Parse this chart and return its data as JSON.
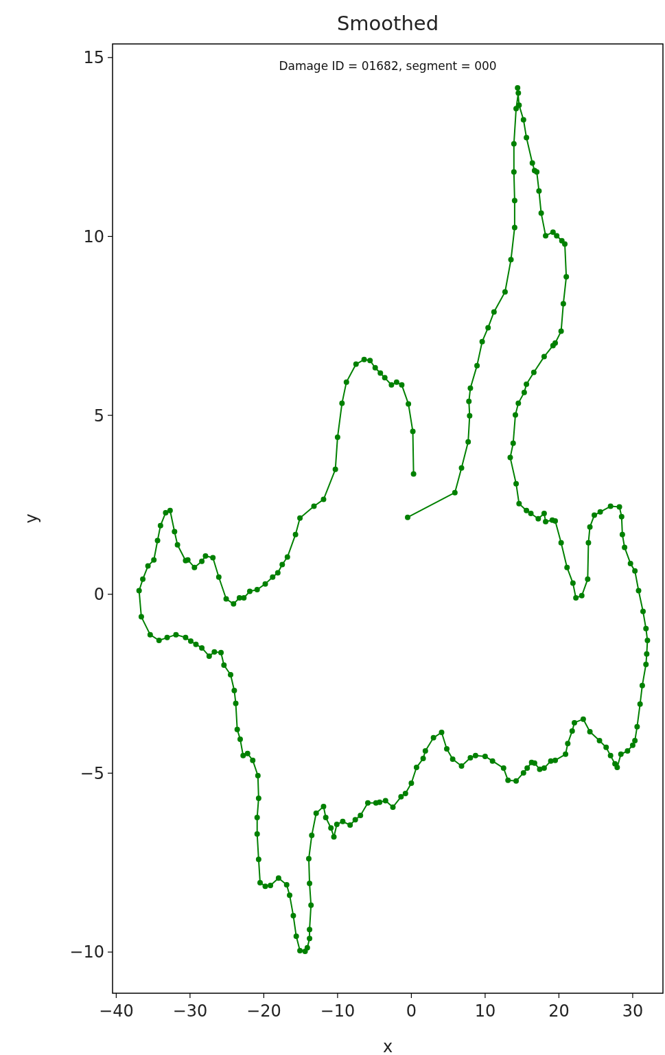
{
  "chart_data": {
    "type": "line",
    "title": "Smoothed",
    "xlabel": "x",
    "ylabel": "y",
    "annotations": [
      "Damage ID = 01682, segment = 000"
    ],
    "marker": "circle",
    "line_style": "solid",
    "grid": false,
    "xlim": [
      -40.5,
      34.1
    ],
    "ylim": [
      -11.15,
      15.38
    ],
    "xticks": [
      {
        "value": -40,
        "label": "−40"
      },
      {
        "value": -30,
        "label": "−30"
      },
      {
        "value": -20,
        "label": "−20"
      },
      {
        "value": -10,
        "label": "−10"
      },
      0,
      10,
      20,
      30
    ],
    "yticks": [
      {
        "value": -10,
        "label": "−10"
      },
      {
        "value": -5,
        "label": "−5"
      },
      0,
      5,
      10,
      15
    ],
    "series": [
      {
        "color": "#008000",
        "x": [
          0.3,
          0.2,
          -0.4,
          -1.3,
          -2.0,
          -2.7,
          -3.6,
          -4.2,
          -4.9,
          -5.6,
          -6.4,
          -7.5,
          -8.8,
          -9.4,
          -10.0,
          -10.3,
          -11.9,
          -13.2,
          -15.1,
          -15.7,
          -16.8,
          -17.5,
          -18.1,
          -18.8,
          -19.8,
          -20.9,
          -21.9,
          -22.7,
          -23.3,
          -24.1,
          -25.1,
          -26.1,
          -26.9,
          -27.9,
          -28.4,
          -29.4,
          -30.3,
          -30.6,
          -31.7,
          -32.1,
          -32.7,
          -33.3,
          -34.0,
          -34.4,
          -34.9,
          -35.7,
          -36.4,
          -36.9,
          -36.6,
          -35.4,
          -34.2,
          -33.1,
          -31.9,
          -30.6,
          -29.9,
          -29.2,
          -28.4,
          -27.4,
          -26.7,
          -25.8,
          -25.4,
          -24.5,
          -24.0,
          -23.8,
          -23.6,
          -23.2,
          -22.8,
          -22.2,
          -21.5,
          -20.8,
          -20.7,
          -20.9,
          -20.9,
          -20.7,
          -20.5,
          -19.8,
          -19.1,
          -18.0,
          -16.9,
          -16.5,
          -16.0,
          -15.6,
          -15.1,
          -14.4,
          -14.1,
          -13.8,
          -13.8,
          -13.6,
          -13.8,
          -13.9,
          -13.5,
          -12.9,
          -11.9,
          -11.6,
          -10.9,
          -10.5,
          -10.1,
          -9.3,
          -8.3,
          -7.6,
          -6.9,
          -5.9,
          -4.8,
          -4.3,
          -3.5,
          -2.5,
          -1.4,
          -0.8,
          0.0,
          0.7,
          1.6,
          1.9,
          3.0,
          4.1,
          4.8,
          5.6,
          6.8,
          8.0,
          8.7,
          10.0,
          11.0,
          12.5,
          13.1,
          14.2,
          15.2,
          15.7,
          16.3,
          16.7,
          17.4,
          18.0,
          18.9,
          19.5,
          20.9,
          21.2,
          21.8,
          22.1,
          23.3,
          24.2,
          25.5,
          26.4,
          27.0,
          27.6,
          27.9,
          28.4,
          29.3,
          30.0,
          30.3,
          30.6,
          31.0,
          31.3,
          31.8,
          31.9,
          32.0,
          31.8,
          31.4,
          30.8,
          30.3,
          29.7,
          28.9,
          28.6,
          28.5,
          28.2,
          27.0,
          25.6,
          24.8,
          24.2,
          24.0,
          23.9,
          23.1,
          22.3,
          21.9,
          21.1,
          20.3,
          19.5,
          19.1,
          18.2,
          18.0,
          17.2,
          16.2,
          15.6,
          14.6,
          14.2,
          13.4,
          13.8,
          14.1,
          14.5,
          15.3,
          15.6,
          16.6,
          18.0,
          19.2,
          19.5,
          20.3,
          20.6,
          21.0,
          20.8,
          20.4,
          19.7,
          19.2,
          18.2,
          17.6,
          17.3,
          17.0,
          16.7,
          16.4,
          15.6,
          15.2,
          14.6,
          14.4,
          14.5,
          14.2,
          13.9,
          13.9,
          14.0,
          14.0,
          13.5,
          12.7,
          11.2,
          10.4,
          9.6,
          8.9,
          8.0,
          7.8,
          7.9,
          7.7,
          6.8,
          5.9,
          -0.5
        ],
        "values": [
          3.36,
          4.55,
          5.32,
          5.85,
          5.93,
          5.85,
          6.05,
          6.18,
          6.33,
          6.53,
          6.56,
          6.43,
          5.93,
          5.34,
          4.39,
          3.49,
          2.65,
          2.46,
          2.13,
          1.67,
          1.04,
          0.83,
          0.6,
          0.48,
          0.29,
          0.13,
          0.08,
          -0.1,
          -0.1,
          -0.27,
          -0.13,
          0.48,
          1.02,
          1.07,
          0.92,
          0.75,
          0.96,
          0.94,
          1.38,
          1.75,
          2.34,
          2.28,
          1.92,
          1.5,
          0.96,
          0.79,
          0.42,
          0.1,
          -0.63,
          -1.13,
          -1.29,
          -1.21,
          -1.13,
          -1.21,
          -1.31,
          -1.4,
          -1.5,
          -1.73,
          -1.61,
          -1.63,
          -1.98,
          -2.25,
          -2.69,
          -3.05,
          -3.78,
          -4.05,
          -4.51,
          -4.45,
          -4.64,
          -5.07,
          -5.7,
          -6.24,
          -6.7,
          -7.41,
          -8.06,
          -8.16,
          -8.14,
          -7.93,
          -8.12,
          -8.41,
          -8.98,
          -9.56,
          -9.96,
          -9.98,
          -9.88,
          -9.62,
          -9.37,
          -8.69,
          -8.08,
          -7.39,
          -6.74,
          -6.12,
          -5.93,
          -6.24,
          -6.53,
          -6.78,
          -6.43,
          -6.35,
          -6.45,
          -6.3,
          -6.18,
          -5.83,
          -5.83,
          -5.81,
          -5.77,
          -5.95,
          -5.66,
          -5.57,
          -5.28,
          -4.84,
          -4.59,
          -4.38,
          -4.01,
          -3.86,
          -4.32,
          -4.61,
          -4.8,
          -4.57,
          -4.51,
          -4.53,
          -4.66,
          -4.86,
          -5.2,
          -5.22,
          -4.99,
          -4.86,
          -4.7,
          -4.72,
          -4.89,
          -4.86,
          -4.66,
          -4.64,
          -4.47,
          -4.17,
          -3.82,
          -3.59,
          -3.49,
          -3.84,
          -4.09,
          -4.28,
          -4.51,
          -4.74,
          -4.84,
          -4.47,
          -4.38,
          -4.22,
          -4.09,
          -3.7,
          -3.07,
          -2.55,
          -1.96,
          -1.67,
          -1.29,
          -0.96,
          -0.48,
          0.1,
          0.65,
          0.86,
          1.31,
          1.67,
          2.17,
          2.44,
          2.46,
          2.3,
          2.21,
          1.88,
          1.44,
          0.42,
          -0.04,
          -0.1,
          0.31,
          0.75,
          1.44,
          2.05,
          2.07,
          2.03,
          2.26,
          2.11,
          2.26,
          2.34,
          2.53,
          3.09,
          3.82,
          4.22,
          5.01,
          5.34,
          5.64,
          5.87,
          6.2,
          6.64,
          6.95,
          7.02,
          7.35,
          8.12,
          8.87,
          9.79,
          9.88,
          10.02,
          10.12,
          10.02,
          10.65,
          11.27,
          11.8,
          11.84,
          12.05,
          12.76,
          13.26,
          13.67,
          14.15,
          14.01,
          13.57,
          12.59,
          11.8,
          11.0,
          10.25,
          9.35,
          8.45,
          7.89,
          7.45,
          7.06,
          6.39,
          5.76,
          5.39,
          4.99,
          4.26,
          3.53,
          2.84,
          2.15
        ]
      }
    ]
  }
}
